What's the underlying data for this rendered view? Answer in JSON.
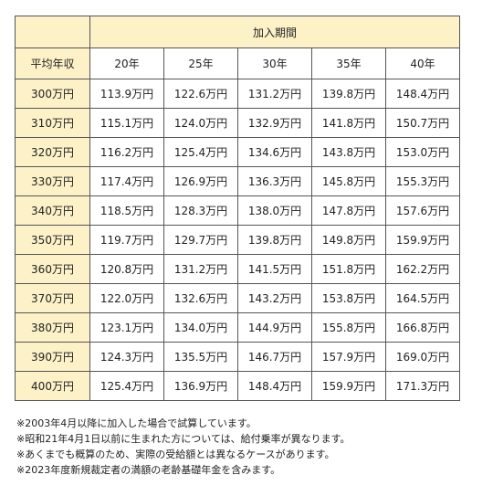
{
  "table": {
    "period_header": "加入期間",
    "income_header": "平均年収",
    "years": [
      "20年",
      "25年",
      "30年",
      "35年",
      "40年"
    ],
    "rows": [
      {
        "income": "300万円",
        "values": [
          "113.9万円",
          "122.6万円",
          "131.2万円",
          "139.8万円",
          "148.4万円"
        ]
      },
      {
        "income": "310万円",
        "values": [
          "115.1万円",
          "124.0万円",
          "132.9万円",
          "141.8万円",
          "150.7万円"
        ]
      },
      {
        "income": "320万円",
        "values": [
          "116.2万円",
          "125.4万円",
          "134.6万円",
          "143.8万円",
          "153.0万円"
        ]
      },
      {
        "income": "330万円",
        "values": [
          "117.4万円",
          "126.9万円",
          "136.3万円",
          "145.8万円",
          "155.3万円"
        ]
      },
      {
        "income": "340万円",
        "values": [
          "118.5万円",
          "128.3万円",
          "138.0万円",
          "147.8万円",
          "157.6万円"
        ]
      },
      {
        "income": "350万円",
        "values": [
          "119.7万円",
          "129.7万円",
          "139.8万円",
          "149.8万円",
          "159.9万円"
        ]
      },
      {
        "income": "360万円",
        "values": [
          "120.8万円",
          "131.2万円",
          "141.5万円",
          "151.8万円",
          "162.2万円"
        ]
      },
      {
        "income": "370万円",
        "values": [
          "122.0万円",
          "132.6万円",
          "143.2万円",
          "153.8万円",
          "164.5万円"
        ]
      },
      {
        "income": "380万円",
        "values": [
          "123.1万円",
          "134.0万円",
          "144.9万円",
          "155.8万円",
          "166.8万円"
        ]
      },
      {
        "income": "390万円",
        "values": [
          "124.3万円",
          "135.5万円",
          "146.7万円",
          "157.9万円",
          "169.0万円"
        ]
      },
      {
        "income": "400万円",
        "values": [
          "125.4万円",
          "136.9万円",
          "148.4万円",
          "159.9万円",
          "171.3万円"
        ]
      }
    ]
  },
  "notes": [
    "※2003年4月以降に加入した場合で試算しています。",
    "※昭和21年4月1日以前に生まれた方については、給付乗率が異なります。",
    "※あくまでも概算のため、実際の受給額とは異なるケースがあります。",
    "※2023年度新規裁定者の満額の老齢基礎年金を含みます。"
  ],
  "colors": {
    "header_bg": "#fdf1c8",
    "border": "#555555"
  }
}
